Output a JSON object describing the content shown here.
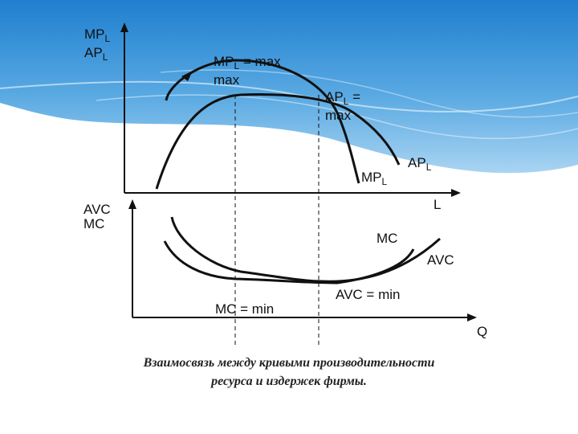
{
  "top_axis_label": {
    "line1_main": "MP",
    "line1_sub": "L",
    "line2_main": "AP",
    "line2_sub": "L"
  },
  "bottom_axis_label": {
    "line1": "AVC",
    "line2": "MC"
  },
  "top_x_label": "L",
  "bottom_x_label": "Q",
  "curve_labels": {
    "mp_max": {
      "main": "MP",
      "sub": "L",
      "suffix": " = max"
    },
    "mp_max_line2": "max",
    "ap_max": {
      "main": "AP",
      "sub": "L",
      "suffix": " = "
    },
    "ap_max_line2": "max",
    "mpl": {
      "main": "MP",
      "sub": "L"
    },
    "apl": {
      "main": "AP",
      "sub": "L"
    },
    "mc": "MC",
    "avc": "AVC",
    "mc_min": "MC = min",
    "avc_min": "AVC = min"
  },
  "caption": {
    "line1": "Взаимосвязь между кривыми производительности",
    "line2": "ресурса и издержек фирмы."
  },
  "colors": {
    "sky_top": "#1f7fcf",
    "sky_mid": "#6fb4e6",
    "wave": "#ffffff",
    "curve": "#111111"
  }
}
